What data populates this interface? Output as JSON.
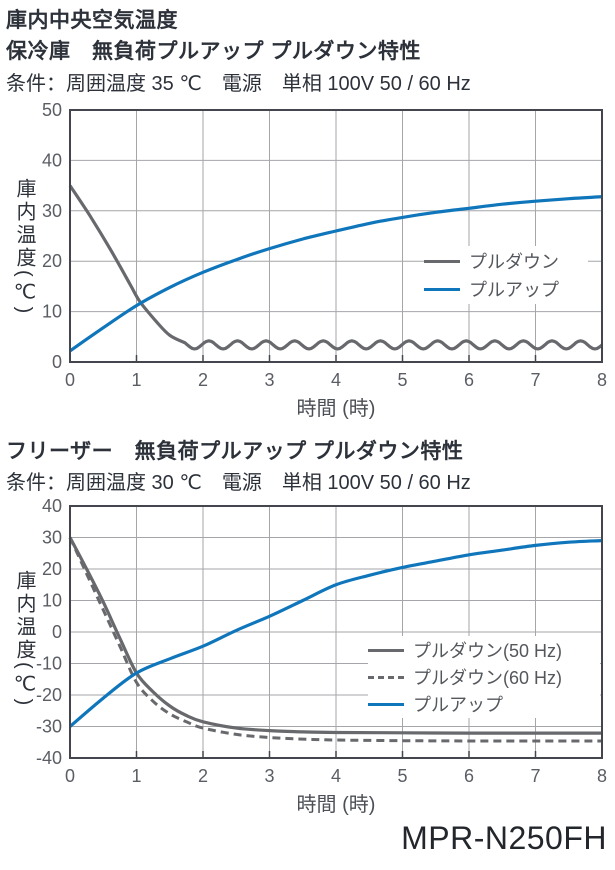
{
  "page": {
    "main_title": "庫内中央空気温度",
    "model_label": "MPR-N250FH"
  },
  "colors": {
    "background": "#ffffff",
    "text_dark": "#2c313a",
    "tick_label": "#5a5e64",
    "axis": "#43464c",
    "grid": "#a4a6a9",
    "legend_text": "#54575c",
    "pulldown_gray": "#67696d",
    "pullup_blue": "#0f76bc"
  },
  "chart_data": [
    {
      "type": "line",
      "title": "保冷庫　無負荷プルアップ プルダウン特性",
      "conditions": "条件：周囲温度 35 ℃　電源　単相 100V  50 / 60 Hz",
      "xlabel": "時間 (時)",
      "ylabel": "庫内温度(℃)",
      "xlim": [
        0,
        8
      ],
      "ylim": [
        0,
        50
      ],
      "x_ticks": [
        0,
        1,
        2,
        3,
        4,
        5,
        6,
        7,
        8
      ],
      "y_ticks": [
        0,
        10,
        20,
        30,
        40,
        50
      ],
      "grid": true,
      "legend_position": "inside-right",
      "series": [
        {
          "name": "プルダウン",
          "color": "#67696d",
          "style": "solid",
          "points": [
            [
              0,
              35
            ],
            [
              0.3,
              29
            ],
            [
              0.6,
              22.5
            ],
            [
              0.9,
              15.5
            ],
            [
              1.05,
              12
            ],
            [
              1.3,
              8
            ],
            [
              1.5,
              5.3
            ],
            [
              1.73,
              3.8
            ]
          ],
          "wavy_tail": {
            "from": 1.73,
            "to": 8,
            "value": 3.4,
            "amplitude": 0.8,
            "wavelength": 0.43
          }
        },
        {
          "name": "プルアップ",
          "color": "#0f76bc",
          "style": "solid",
          "points": [
            [
              0,
              2.2
            ],
            [
              0.5,
              6.8
            ],
            [
              1,
              11.2
            ],
            [
              1.5,
              14.8
            ],
            [
              2,
              17.8
            ],
            [
              2.5,
              20.3
            ],
            [
              3,
              22.5
            ],
            [
              3.5,
              24.4
            ],
            [
              4,
              26
            ],
            [
              4.5,
              27.5
            ],
            [
              5,
              28.7
            ],
            [
              5.5,
              29.7
            ],
            [
              6,
              30.5
            ],
            [
              6.5,
              31.3
            ],
            [
              7,
              31.9
            ],
            [
              7.5,
              32.4
            ],
            [
              8,
              32.8
            ]
          ]
        }
      ]
    },
    {
      "type": "line",
      "title": "フリーザー　無負荷プルアップ プルダウン特性",
      "conditions": "条件：周囲温度 30 ℃　電源　単相 100V  50 / 60 Hz",
      "xlabel": "時間 (時)",
      "ylabel": "庫内温度(℃)",
      "xlim": [
        0,
        8
      ],
      "ylim": [
        -40,
        40
      ],
      "x_ticks": [
        0,
        1,
        2,
        3,
        4,
        5,
        6,
        7,
        8
      ],
      "y_ticks": [
        -40,
        -30,
        -20,
        -10,
        0,
        10,
        20,
        30,
        40
      ],
      "grid": true,
      "legend_position": "inside-right",
      "series": [
        {
          "name": "プルダウン(50 Hz)",
          "color": "#67696d",
          "style": "solid",
          "points": [
            [
              0,
              30
            ],
            [
              0.25,
              20
            ],
            [
              0.5,
              9.5
            ],
            [
              0.75,
              -2
            ],
            [
              1,
              -13
            ],
            [
              1.25,
              -19
            ],
            [
              1.5,
              -23.5
            ],
            [
              1.75,
              -26.5
            ],
            [
              2,
              -28.5
            ],
            [
              2.5,
              -30.5
            ],
            [
              3,
              -31.3
            ],
            [
              3.5,
              -31.7
            ],
            [
              4,
              -31.9
            ],
            [
              5,
              -32
            ],
            [
              6,
              -32.1
            ],
            [
              7,
              -32.1
            ],
            [
              8,
              -32.1
            ]
          ]
        },
        {
          "name": "プルダウン(60 Hz)",
          "color": "#67696d",
          "style": "dashed",
          "points": [
            [
              0,
              30
            ],
            [
              0.25,
              18.5
            ],
            [
              0.5,
              7
            ],
            [
              0.75,
              -4.5
            ],
            [
              1,
              -16
            ],
            [
              1.25,
              -22
            ],
            [
              1.5,
              -26
            ],
            [
              1.75,
              -28.5
            ],
            [
              2,
              -30.5
            ],
            [
              2.5,
              -32.5
            ],
            [
              3,
              -33.5
            ],
            [
              3.5,
              -34
            ],
            [
              4,
              -34.3
            ],
            [
              5,
              -34.5
            ],
            [
              6,
              -34.6
            ],
            [
              7,
              -34.6
            ],
            [
              8,
              -34.6
            ]
          ]
        },
        {
          "name": "プルアップ",
          "color": "#0f76bc",
          "style": "solid",
          "points": [
            [
              0,
              -30
            ],
            [
              0.5,
              -21
            ],
            [
              1,
              -13
            ],
            [
              1.5,
              -8.5
            ],
            [
              2,
              -4.5
            ],
            [
              2.5,
              0.5
            ],
            [
              3,
              5
            ],
            [
              3.5,
              10
            ],
            [
              4,
              15
            ],
            [
              4.5,
              18
            ],
            [
              5,
              20.5
            ],
            [
              5.5,
              22.5
            ],
            [
              6,
              24.5
            ],
            [
              6.5,
              26
            ],
            [
              7,
              27.5
            ],
            [
              7.5,
              28.5
            ],
            [
              8,
              29
            ]
          ]
        }
      ]
    }
  ]
}
